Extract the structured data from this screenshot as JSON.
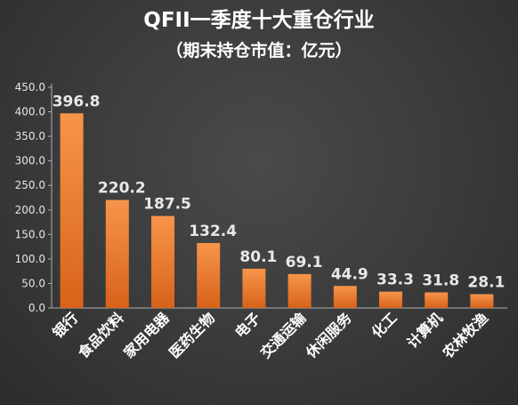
{
  "chart_data": {
    "type": "bar",
    "title": "QFII一季度十大重仓行业",
    "subtitle": "（期末持仓市值：亿元）",
    "categories": [
      "银行",
      "食品饮料",
      "家用电器",
      "医药生物",
      "电子",
      "交通运输",
      "休闲服务",
      "化工",
      "计算机",
      "农林牧渔"
    ],
    "values": [
      396.8,
      220.2,
      187.5,
      132.4,
      80.1,
      69.1,
      44.9,
      33.3,
      31.8,
      28.1
    ],
    "value_labels": [
      "396.8",
      "220.2",
      "187.5",
      "132.4",
      "80.1",
      "69.1",
      "44.9",
      "33.3",
      "31.8",
      "28.1"
    ],
    "yticks": [
      "0.0",
      "50.0",
      "100.0",
      "150.0",
      "200.0",
      "250.0",
      "300.0",
      "350.0",
      "400.0",
      "450.0"
    ],
    "ylim": [
      0,
      450
    ],
    "grid": false,
    "legend": "none",
    "colors": {
      "bar_top": "#f7954a",
      "bar_bottom": "#d8621a",
      "axis": "#b0b0b0"
    }
  }
}
